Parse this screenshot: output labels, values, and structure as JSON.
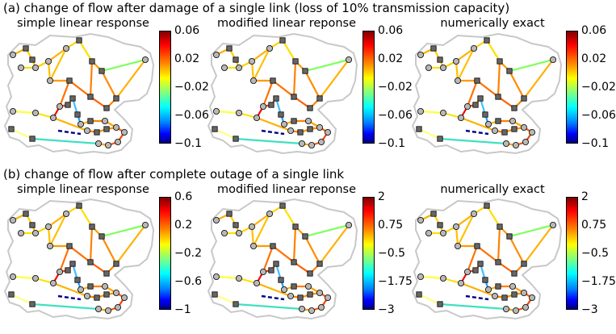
{
  "row_a": {
    "title": "(a) change of flow after damage of a single link (loss of 10% transmission capacity)",
    "panels": [
      {
        "title": "simple linear response",
        "ticks": [
          "0.06",
          "0.02",
          "−0.02",
          "−0.06",
          "−0.1"
        ]
      },
      {
        "title": "modified linear reponse",
        "ticks": [
          "0.06",
          "0.02",
          "−0.02",
          "−0.06",
          "−0.1"
        ]
      },
      {
        "title": "numerically exact",
        "ticks": [
          "0.06",
          "0.02",
          "−0.02",
          "−0.06",
          "−0.1"
        ]
      }
    ]
  },
  "row_b": {
    "title": "(b) change of flow after complete outage of a single link",
    "panels": [
      {
        "title": "simple linear response",
        "ticks": [
          "0.6",
          "0.2",
          "−0.2",
          "−0.6",
          "−1"
        ]
      },
      {
        "title": "modified linear reponse",
        "ticks": [
          "2",
          "0.75",
          "−0.5",
          "−1.75",
          "−3"
        ]
      },
      {
        "title": "numerically exact",
        "ticks": [
          "2",
          "0.75",
          "−0.5",
          "−1.75",
          "−3"
        ]
      }
    ]
  },
  "colors": {
    "node_fill": "#b8b8b8",
    "square_fill": "#666666",
    "outline": "#c8c8c8"
  }
}
